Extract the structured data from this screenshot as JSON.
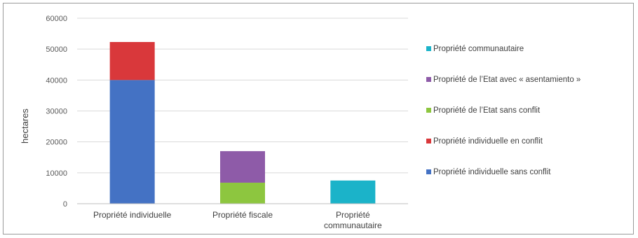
{
  "chart_data": {
    "type": "bar",
    "stacked": true,
    "ylabel": "hectares",
    "ylim": [
      0,
      60000
    ],
    "yticks": [
      0,
      10000,
      20000,
      30000,
      40000,
      50000,
      60000
    ],
    "grid": true,
    "legend_position": "right",
    "categories": [
      [
        "Propriété individuelle"
      ],
      [
        "Propriété fiscale"
      ],
      [
        "Propriété",
        "communautaire"
      ]
    ],
    "series": [
      {
        "name": "Propriété individuelle sans conflit",
        "color": "#4472c4",
        "values": [
          40000,
          0,
          0
        ]
      },
      {
        "name": "Propriété individuelle en conflit",
        "color": "#d9383b",
        "values": [
          12300,
          0,
          0
        ]
      },
      {
        "name": "Propriété de l’Etat sans conflit",
        "color": "#8dc63f",
        "values": [
          0,
          6800,
          0
        ]
      },
      {
        "name": "Propriété de l’Etat avec « asentamiento »",
        "color": "#8e5ba8",
        "values": [
          0,
          10200,
          0
        ]
      },
      {
        "name": "Propriété communautaire",
        "color": "#1bb3c9",
        "values": [
          0,
          0,
          7500
        ]
      }
    ],
    "legend_order": [
      4,
      3,
      2,
      1,
      0
    ]
  }
}
